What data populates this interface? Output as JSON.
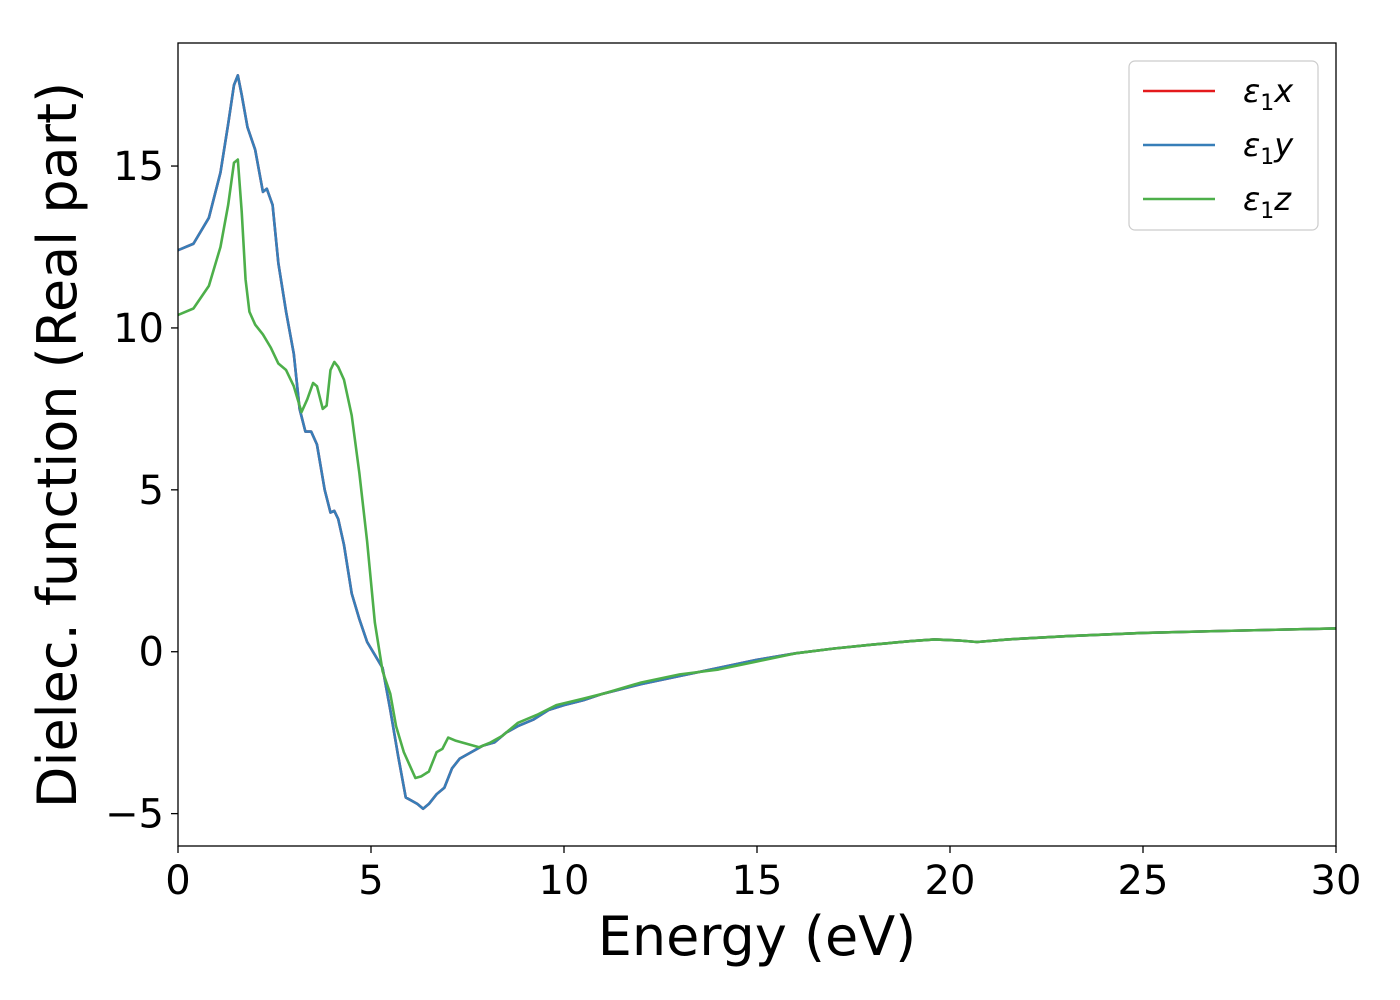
{
  "chart_data": {
    "type": "line",
    "title": "",
    "xlabel": "Energy (eV)",
    "ylabel": "Dielec. function (Real part)",
    "xlim": [
      0,
      30
    ],
    "ylim": [
      -6,
      18.8
    ],
    "xticks": [
      0,
      5,
      10,
      15,
      20,
      25,
      30
    ],
    "xtick_labels": [
      "0",
      "5",
      "10",
      "15",
      "20",
      "25",
      "30"
    ],
    "yticks": [
      -5,
      0,
      5,
      10,
      15
    ],
    "ytick_labels": [
      "−5",
      "0",
      "5",
      "10",
      "15"
    ],
    "grid": false,
    "legend": {
      "position": "top-right",
      "entries": [
        {
          "prefix": "ε",
          "sub": "1",
          "axis": "x"
        },
        {
          "prefix": "ε",
          "sub": "1",
          "axis": "y"
        },
        {
          "prefix": "ε",
          "sub": "1",
          "axis": "z"
        }
      ]
    },
    "series": [
      {
        "name": "ε1x",
        "color": "#e41a1c",
        "points": [
          [
            0,
            12.4
          ],
          [
            0.4,
            12.6
          ],
          [
            0.8,
            13.4
          ],
          [
            1.1,
            14.8
          ],
          [
            1.3,
            16.3
          ],
          [
            1.45,
            17.5
          ],
          [
            1.55,
            17.8
          ],
          [
            1.65,
            17.2
          ],
          [
            1.8,
            16.2
          ],
          [
            2.0,
            15.5
          ],
          [
            2.2,
            14.2
          ],
          [
            2.3,
            14.3
          ],
          [
            2.45,
            13.8
          ],
          [
            2.6,
            12.0
          ],
          [
            2.8,
            10.5
          ],
          [
            3.0,
            9.2
          ],
          [
            3.15,
            7.5
          ],
          [
            3.3,
            6.8
          ],
          [
            3.45,
            6.8
          ],
          [
            3.6,
            6.4
          ],
          [
            3.8,
            5.0
          ],
          [
            3.95,
            4.3
          ],
          [
            4.05,
            4.35
          ],
          [
            4.15,
            4.1
          ],
          [
            4.3,
            3.3
          ],
          [
            4.5,
            1.8
          ],
          [
            4.7,
            1.0
          ],
          [
            4.9,
            0.3
          ],
          [
            5.1,
            -0.1
          ],
          [
            5.3,
            -0.5
          ],
          [
            5.5,
            -1.8
          ],
          [
            5.7,
            -3.2
          ],
          [
            5.9,
            -4.5
          ],
          [
            6.05,
            -4.6
          ],
          [
            6.2,
            -4.7
          ],
          [
            6.35,
            -4.85
          ],
          [
            6.5,
            -4.7
          ],
          [
            6.7,
            -4.4
          ],
          [
            6.9,
            -4.2
          ],
          [
            7.1,
            -3.6
          ],
          [
            7.3,
            -3.3
          ],
          [
            7.6,
            -3.1
          ],
          [
            7.9,
            -2.9
          ],
          [
            8.2,
            -2.8
          ],
          [
            8.5,
            -2.5
          ],
          [
            8.8,
            -2.3
          ],
          [
            9.2,
            -2.1
          ],
          [
            9.6,
            -1.8
          ],
          [
            10.0,
            -1.65
          ],
          [
            10.5,
            -1.5
          ],
          [
            11.0,
            -1.3
          ],
          [
            12.0,
            -1.0
          ],
          [
            13.0,
            -0.75
          ],
          [
            14.0,
            -0.5
          ],
          [
            15.0,
            -0.25
          ],
          [
            16.0,
            -0.05
          ],
          [
            17.0,
            0.1
          ],
          [
            18.0,
            0.22
          ],
          [
            19.0,
            0.33
          ],
          [
            19.6,
            0.38
          ],
          [
            20.2,
            0.35
          ],
          [
            20.7,
            0.3
          ],
          [
            21.5,
            0.38
          ],
          [
            23.0,
            0.48
          ],
          [
            25.0,
            0.58
          ],
          [
            27.0,
            0.64
          ],
          [
            30.0,
            0.72
          ]
        ]
      },
      {
        "name": "ε1y",
        "color": "#377eb8",
        "points": [
          [
            0,
            12.4
          ],
          [
            0.4,
            12.6
          ],
          [
            0.8,
            13.4
          ],
          [
            1.1,
            14.8
          ],
          [
            1.3,
            16.3
          ],
          [
            1.45,
            17.5
          ],
          [
            1.55,
            17.8
          ],
          [
            1.65,
            17.2
          ],
          [
            1.8,
            16.2
          ],
          [
            2.0,
            15.5
          ],
          [
            2.2,
            14.2
          ],
          [
            2.3,
            14.3
          ],
          [
            2.45,
            13.8
          ],
          [
            2.6,
            12.0
          ],
          [
            2.8,
            10.5
          ],
          [
            3.0,
            9.2
          ],
          [
            3.15,
            7.5
          ],
          [
            3.3,
            6.8
          ],
          [
            3.45,
            6.8
          ],
          [
            3.6,
            6.4
          ],
          [
            3.8,
            5.0
          ],
          [
            3.95,
            4.3
          ],
          [
            4.05,
            4.35
          ],
          [
            4.15,
            4.1
          ],
          [
            4.3,
            3.3
          ],
          [
            4.5,
            1.8
          ],
          [
            4.7,
            1.0
          ],
          [
            4.9,
            0.3
          ],
          [
            5.1,
            -0.1
          ],
          [
            5.3,
            -0.5
          ],
          [
            5.5,
            -1.8
          ],
          [
            5.7,
            -3.2
          ],
          [
            5.9,
            -4.5
          ],
          [
            6.05,
            -4.6
          ],
          [
            6.2,
            -4.7
          ],
          [
            6.35,
            -4.85
          ],
          [
            6.5,
            -4.7
          ],
          [
            6.7,
            -4.4
          ],
          [
            6.9,
            -4.2
          ],
          [
            7.1,
            -3.6
          ],
          [
            7.3,
            -3.3
          ],
          [
            7.6,
            -3.1
          ],
          [
            7.9,
            -2.9
          ],
          [
            8.2,
            -2.8
          ],
          [
            8.5,
            -2.5
          ],
          [
            8.8,
            -2.3
          ],
          [
            9.2,
            -2.1
          ],
          [
            9.6,
            -1.8
          ],
          [
            10.0,
            -1.65
          ],
          [
            10.5,
            -1.5
          ],
          [
            11.0,
            -1.3
          ],
          [
            12.0,
            -1.0
          ],
          [
            13.0,
            -0.75
          ],
          [
            14.0,
            -0.5
          ],
          [
            15.0,
            -0.25
          ],
          [
            16.0,
            -0.05
          ],
          [
            17.0,
            0.1
          ],
          [
            18.0,
            0.22
          ],
          [
            19.0,
            0.33
          ],
          [
            19.6,
            0.38
          ],
          [
            20.2,
            0.35
          ],
          [
            20.7,
            0.3
          ],
          [
            21.5,
            0.38
          ],
          [
            23.0,
            0.48
          ],
          [
            25.0,
            0.58
          ],
          [
            27.0,
            0.64
          ],
          [
            30.0,
            0.72
          ]
        ]
      },
      {
        "name": "ε1z",
        "color": "#4daf4a",
        "points": [
          [
            0,
            10.4
          ],
          [
            0.4,
            10.6
          ],
          [
            0.8,
            11.3
          ],
          [
            1.1,
            12.5
          ],
          [
            1.3,
            13.8
          ],
          [
            1.45,
            15.1
          ],
          [
            1.55,
            15.2
          ],
          [
            1.65,
            13.6
          ],
          [
            1.75,
            11.5
          ],
          [
            1.85,
            10.5
          ],
          [
            2.0,
            10.1
          ],
          [
            2.2,
            9.8
          ],
          [
            2.4,
            9.4
          ],
          [
            2.6,
            8.9
          ],
          [
            2.8,
            8.7
          ],
          [
            3.0,
            8.2
          ],
          [
            3.2,
            7.4
          ],
          [
            3.35,
            7.8
          ],
          [
            3.5,
            8.3
          ],
          [
            3.6,
            8.2
          ],
          [
            3.75,
            7.5
          ],
          [
            3.85,
            7.6
          ],
          [
            3.95,
            8.7
          ],
          [
            4.05,
            8.95
          ],
          [
            4.15,
            8.8
          ],
          [
            4.3,
            8.4
          ],
          [
            4.5,
            7.3
          ],
          [
            4.7,
            5.5
          ],
          [
            4.9,
            3.4
          ],
          [
            5.1,
            0.9
          ],
          [
            5.3,
            -0.6
          ],
          [
            5.5,
            -1.3
          ],
          [
            5.65,
            -2.3
          ],
          [
            5.85,
            -3.1
          ],
          [
            6.0,
            -3.5
          ],
          [
            6.15,
            -3.9
          ],
          [
            6.3,
            -3.85
          ],
          [
            6.5,
            -3.7
          ],
          [
            6.7,
            -3.1
          ],
          [
            6.85,
            -3.0
          ],
          [
            7.0,
            -2.65
          ],
          [
            7.2,
            -2.75
          ],
          [
            7.5,
            -2.85
          ],
          [
            7.8,
            -2.95
          ],
          [
            8.1,
            -2.8
          ],
          [
            8.4,
            -2.6
          ],
          [
            8.8,
            -2.2
          ],
          [
            9.3,
            -1.95
          ],
          [
            9.8,
            -1.65
          ],
          [
            10.5,
            -1.45
          ],
          [
            11.0,
            -1.3
          ],
          [
            12.0,
            -0.95
          ],
          [
            13.0,
            -0.7
          ],
          [
            14.0,
            -0.55
          ],
          [
            15.0,
            -0.3
          ],
          [
            16.0,
            -0.05
          ],
          [
            17.0,
            0.1
          ],
          [
            18.0,
            0.22
          ],
          [
            19.0,
            0.33
          ],
          [
            19.6,
            0.38
          ],
          [
            20.2,
            0.35
          ],
          [
            20.7,
            0.3
          ],
          [
            21.5,
            0.38
          ],
          [
            23.0,
            0.48
          ],
          [
            25.0,
            0.58
          ],
          [
            27.0,
            0.64
          ],
          [
            30.0,
            0.72
          ]
        ]
      }
    ]
  }
}
